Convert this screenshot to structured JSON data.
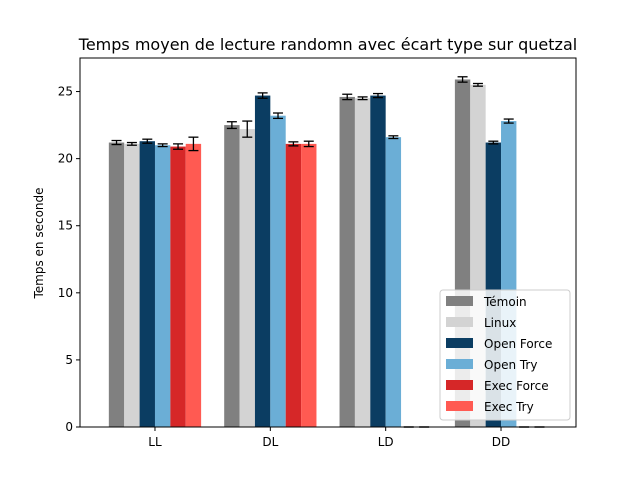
{
  "chart_data": {
    "type": "bar",
    "title": "Temps moyen de lecture randomn avec écart type sur quetzal",
    "xlabel": "",
    "ylabel": "Temps en seconde",
    "ylim": [
      0,
      27.5
    ],
    "yticks": [
      0,
      5,
      10,
      15,
      20,
      25
    ],
    "categories": [
      "LL",
      "DL",
      "LD",
      "DD"
    ],
    "legend_position": "lower-right",
    "grid": false,
    "series": [
      {
        "name": "Témoin",
        "color": "#808080",
        "values": [
          21.2,
          22.5,
          24.6,
          25.9
        ],
        "errors": [
          0.15,
          0.25,
          0.2,
          0.2
        ]
      },
      {
        "name": "Linux",
        "color": "#d3d3d3",
        "values": [
          21.1,
          22.2,
          24.5,
          25.5
        ],
        "errors": [
          0.1,
          0.6,
          0.1,
          0.1
        ]
      },
      {
        "name": "Open Force",
        "color": "#0b3d62",
        "values": [
          21.3,
          24.7,
          24.7,
          21.2
        ],
        "errors": [
          0.15,
          0.2,
          0.15,
          0.1
        ]
      },
      {
        "name": "Open Try",
        "color": "#6baed6",
        "values": [
          21.0,
          23.2,
          21.6,
          22.8
        ],
        "errors": [
          0.1,
          0.2,
          0.1,
          0.15
        ]
      },
      {
        "name": "Exec Force",
        "color": "#d62728",
        "values": [
          20.9,
          21.1,
          0,
          0
        ],
        "errors": [
          0.2,
          0.15,
          0,
          0
        ]
      },
      {
        "name": "Exec Try",
        "color": "#ff5a52",
        "values": [
          21.1,
          21.1,
          0,
          0
        ],
        "errors": [
          0.5,
          0.2,
          0,
          0
        ]
      }
    ]
  }
}
